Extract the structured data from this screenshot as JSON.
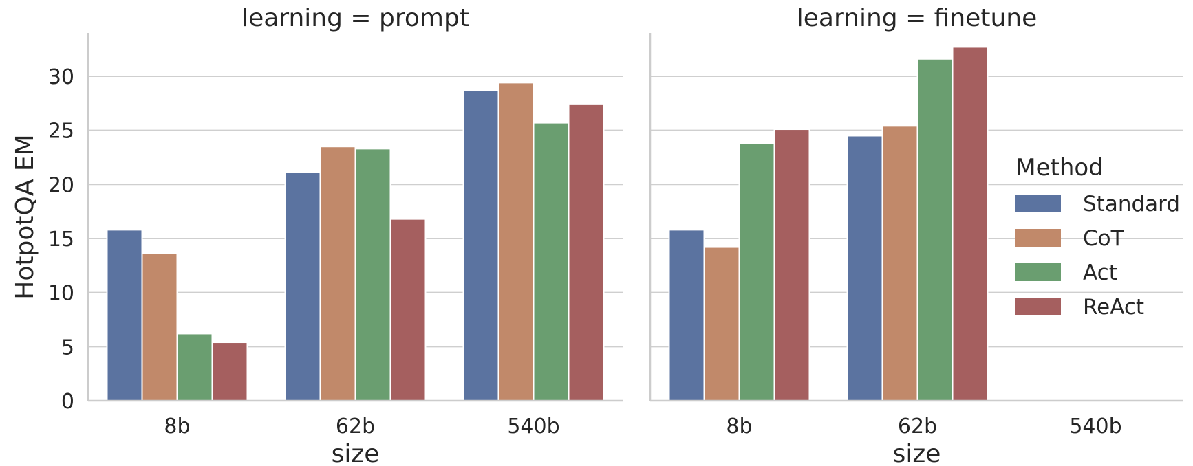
{
  "chart_data": {
    "type": "bar",
    "ylabel": "HotpotQA EM",
    "ylim": [
      0,
      34
    ],
    "yticks": [
      0,
      5,
      10,
      15,
      20,
      25,
      30
    ],
    "grid": true,
    "legend": {
      "title": "Method",
      "placement": "right",
      "entries": [
        {
          "name": "Standard",
          "color": "#5b73a0"
        },
        {
          "name": "CoT",
          "color": "#c1896a"
        },
        {
          "name": "Act",
          "color": "#6a9e70"
        },
        {
          "name": "ReAct",
          "color": "#a55f5f"
        }
      ]
    },
    "panels": [
      {
        "title": "learning = prompt",
        "xlabel": "size",
        "categories": [
          "8b",
          "62b",
          "540b"
        ],
        "series": [
          {
            "name": "Standard",
            "values": [
              15.8,
              21.1,
              28.7
            ]
          },
          {
            "name": "CoT",
            "values": [
              13.6,
              23.5,
              29.4
            ]
          },
          {
            "name": "Act",
            "values": [
              6.2,
              23.3,
              25.7
            ]
          },
          {
            "name": "ReAct",
            "values": [
              5.4,
              16.8,
              27.4
            ]
          }
        ]
      },
      {
        "title": "learning = finetune",
        "xlabel": "size",
        "categories": [
          "8b",
          "62b",
          "540b"
        ],
        "series": [
          {
            "name": "Standard",
            "values": [
              15.8,
              24.5,
              null
            ]
          },
          {
            "name": "CoT",
            "values": [
              14.2,
              25.4,
              null
            ]
          },
          {
            "name": "Act",
            "values": [
              23.8,
              31.6,
              null
            ]
          },
          {
            "name": "ReAct",
            "values": [
              25.1,
              32.7,
              null
            ]
          }
        ]
      }
    ]
  }
}
